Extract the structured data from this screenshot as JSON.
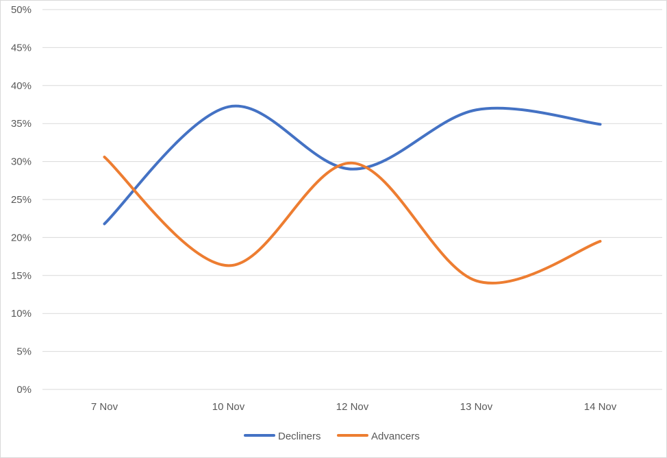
{
  "chart_data": {
    "type": "line",
    "title": "",
    "xlabel": "",
    "ylabel": "",
    "categories": [
      "7 Nov",
      "10 Nov",
      "12 Nov",
      "13 Nov",
      "14 Nov"
    ],
    "ylim": [
      0,
      50
    ],
    "yticks": [
      0,
      5,
      10,
      15,
      20,
      25,
      30,
      35,
      40,
      45,
      50
    ],
    "ytick_labels": [
      "0%",
      "5%",
      "10%",
      "15%",
      "20%",
      "25%",
      "30%",
      "35%",
      "40%",
      "45%",
      "50%"
    ],
    "grid": true,
    "smooth": true,
    "legend_position": "bottom",
    "series": [
      {
        "name": "Decliners",
        "color": "#4472c4",
        "values": [
          21.8,
          37.2,
          29.0,
          36.8,
          34.9
        ]
      },
      {
        "name": "Advancers",
        "color": "#ed7d31",
        "values": [
          30.6,
          16.3,
          29.8,
          14.3,
          19.5
        ]
      }
    ]
  }
}
